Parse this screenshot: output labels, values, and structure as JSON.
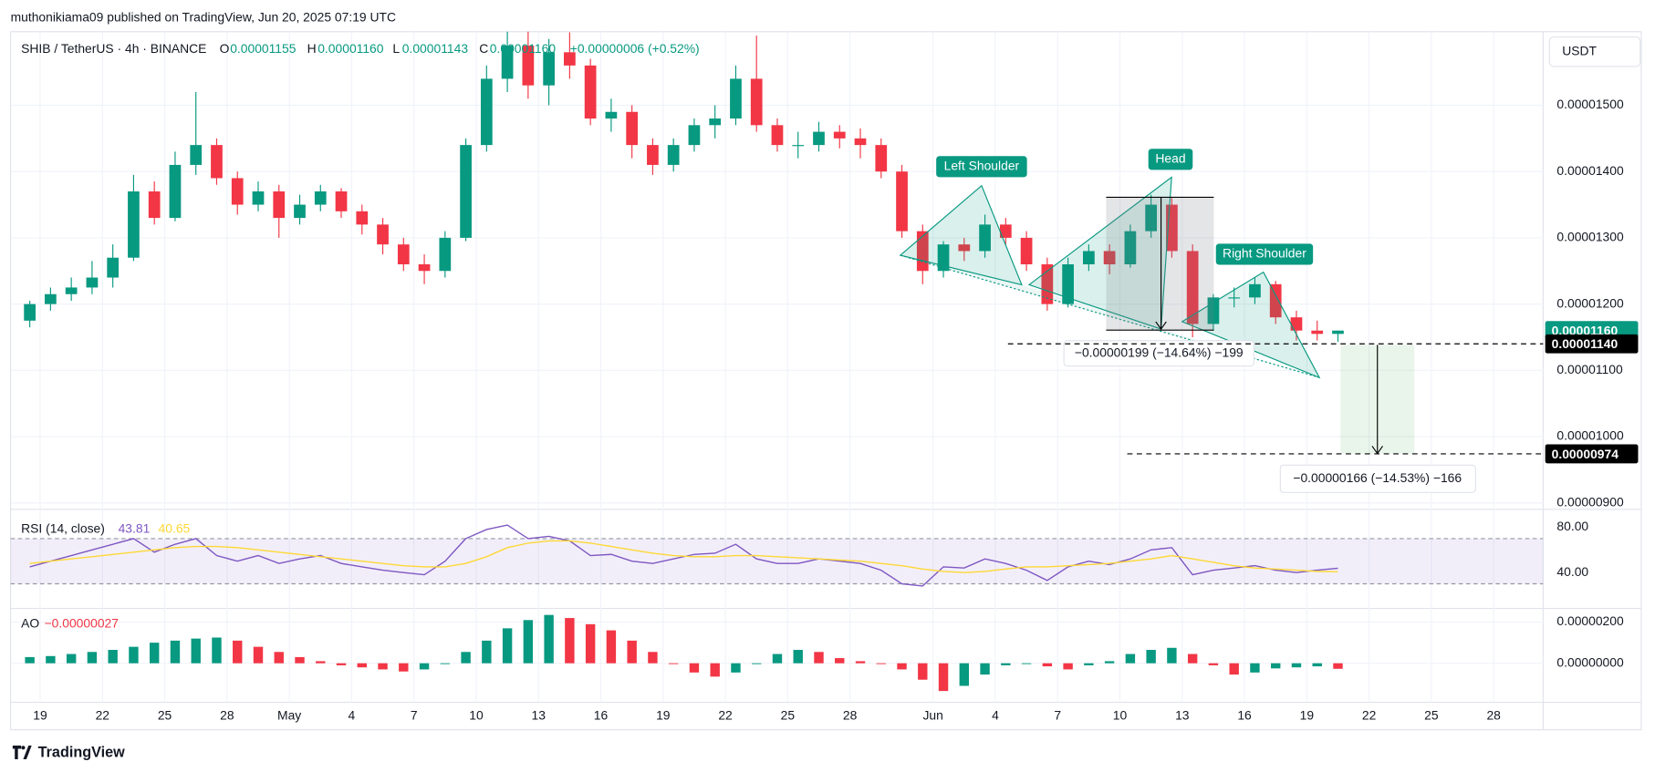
{
  "page": {
    "publisher": "muthonikiama09 published on TradingView, Jun 20, 2025 07:19 UTC",
    "brand": "TradingView"
  },
  "chart_data": {
    "type": "candlestick",
    "title": "SHIB / TetherUS · 4h · BINANCE",
    "ohlc_legend": [
      {
        "key": "O",
        "text": "0.00001155"
      },
      {
        "key": "H",
        "text": "0.00001160"
      },
      {
        "key": "L",
        "text": "0.00001143"
      },
      {
        "key": "C",
        "text": "0.00001160"
      }
    ],
    "change": "+0.00000006 (+0.52%)",
    "currency": "USDT",
    "up_color": "#089981",
    "down_color": "#f23645",
    "x": [
      "2025-04-18",
      "2025-04-19",
      "2025-04-20",
      "2025-04-21",
      "2025-04-22",
      "2025-04-23",
      "2025-04-24",
      "2025-04-25",
      "2025-04-26",
      "2025-04-27",
      "2025-04-28",
      "2025-04-29",
      "2025-04-30",
      "2025-05-01",
      "2025-05-02",
      "2025-05-03",
      "2025-05-04",
      "2025-05-05",
      "2025-05-06",
      "2025-05-07",
      "2025-05-08",
      "2025-05-09",
      "2025-05-10",
      "2025-05-11",
      "2025-05-12",
      "2025-05-13",
      "2025-05-14",
      "2025-05-15",
      "2025-05-16",
      "2025-05-17",
      "2025-05-18",
      "2025-05-19",
      "2025-05-20",
      "2025-05-21",
      "2025-05-22",
      "2025-05-23",
      "2025-05-24",
      "2025-05-25",
      "2025-05-26",
      "2025-05-27",
      "2025-05-28",
      "2025-05-29",
      "2025-05-30",
      "2025-05-31",
      "2025-06-01",
      "2025-06-02",
      "2025-06-03",
      "2025-06-04",
      "2025-06-05",
      "2025-06-06",
      "2025-06-07",
      "2025-06-08",
      "2025-06-09",
      "2025-06-10",
      "2025-06-11",
      "2025-06-12",
      "2025-06-13",
      "2025-06-14",
      "2025-06-15",
      "2025-06-16",
      "2025-06-17",
      "2025-06-18",
      "2025-06-19",
      "2025-06-20"
    ],
    "open": [
      1.175e-05,
      1.2e-05,
      1.215e-05,
      1.225e-05,
      1.24e-05,
      1.27e-05,
      1.37e-05,
      1.33e-05,
      1.41e-05,
      1.44e-05,
      1.39e-05,
      1.35e-05,
      1.37e-05,
      1.33e-05,
      1.35e-05,
      1.37e-05,
      1.34e-05,
      1.32e-05,
      1.29e-05,
      1.26e-05,
      1.25e-05,
      1.3e-05,
      1.44e-05,
      1.54e-05,
      1.59e-05,
      1.53e-05,
      1.58e-05,
      1.56e-05,
      1.48e-05,
      1.49e-05,
      1.44e-05,
      1.41e-05,
      1.44e-05,
      1.47e-05,
      1.48e-05,
      1.54e-05,
      1.47e-05,
      1.44e-05,
      1.44e-05,
      1.46e-05,
      1.45e-05,
      1.44e-05,
      1.4e-05,
      1.31e-05,
      1.25e-05,
      1.29e-05,
      1.28e-05,
      1.32e-05,
      1.3e-05,
      1.26e-05,
      1.2e-05,
      1.26e-05,
      1.28e-05,
      1.26e-05,
      1.31e-05,
      1.35e-05,
      1.28e-05,
      1.17e-05,
      1.21e-05,
      1.21e-05,
      1.23e-05,
      1.18e-05,
      1.16e-05,
      1.155e-05
    ],
    "high": [
      1.205e-05,
      1.225e-05,
      1.24e-05,
      1.265e-05,
      1.29e-05,
      1.395e-05,
      1.385e-05,
      1.43e-05,
      1.52e-05,
      1.45e-05,
      1.4e-05,
      1.385e-05,
      1.38e-05,
      1.365e-05,
      1.38e-05,
      1.375e-05,
      1.35e-05,
      1.33e-05,
      1.3e-05,
      1.275e-05,
      1.31e-05,
      1.45e-05,
      1.56e-05,
      1.62e-05,
      1.615e-05,
      1.6e-05,
      1.61e-05,
      1.57e-05,
      1.51e-05,
      1.5e-05,
      1.45e-05,
      1.45e-05,
      1.48e-05,
      1.5e-05,
      1.56e-05,
      1.605e-05,
      1.48e-05,
      1.46e-05,
      1.475e-05,
      1.47e-05,
      1.465e-05,
      1.45e-05,
      1.41e-05,
      1.32e-05,
      1.295e-05,
      1.3e-05,
      1.335e-05,
      1.33e-05,
      1.31e-05,
      1.27e-05,
      1.27e-05,
      1.29e-05,
      1.29e-05,
      1.32e-05,
      1.365e-05,
      1.36e-05,
      1.29e-05,
      1.215e-05,
      1.225e-05,
      1.24e-05,
      1.235e-05,
      1.19e-05,
      1.175e-05,
      1.16e-05
    ],
    "low": [
      1.165e-05,
      1.19e-05,
      1.205e-05,
      1.215e-05,
      1.225e-05,
      1.265e-05,
      1.32e-05,
      1.325e-05,
      1.395e-05,
      1.38e-05,
      1.335e-05,
      1.34e-05,
      1.3e-05,
      1.32e-05,
      1.34e-05,
      1.33e-05,
      1.305e-05,
      1.275e-05,
      1.25e-05,
      1.23e-05,
      1.24e-05,
      1.295e-05,
      1.43e-05,
      1.52e-05,
      1.51e-05,
      1.5e-05,
      1.54e-05,
      1.47e-05,
      1.46e-05,
      1.42e-05,
      1.395e-05,
      1.4e-05,
      1.43e-05,
      1.45e-05,
      1.47e-05,
      1.46e-05,
      1.43e-05,
      1.42e-05,
      1.43e-05,
      1.435e-05,
      1.42e-05,
      1.39e-05,
      1.3e-05,
      1.23e-05,
      1.24e-05,
      1.265e-05,
      1.27e-05,
      1.29e-05,
      1.25e-05,
      1.19e-05,
      1.195e-05,
      1.25e-05,
      1.245e-05,
      1.255e-05,
      1.3e-05,
      1.27e-05,
      1.15e-05,
      1.16e-05,
      1.195e-05,
      1.2e-05,
      1.17e-05,
      1.145e-05,
      1.145e-05,
      1.143e-05
    ],
    "close": [
      1.2e-05,
      1.215e-05,
      1.225e-05,
      1.24e-05,
      1.27e-05,
      1.37e-05,
      1.33e-05,
      1.41e-05,
      1.44e-05,
      1.39e-05,
      1.35e-05,
      1.37e-05,
      1.33e-05,
      1.35e-05,
      1.37e-05,
      1.34e-05,
      1.32e-05,
      1.29e-05,
      1.26e-05,
      1.25e-05,
      1.3e-05,
      1.44e-05,
      1.54e-05,
      1.59e-05,
      1.53e-05,
      1.58e-05,
      1.56e-05,
      1.48e-05,
      1.49e-05,
      1.44e-05,
      1.41e-05,
      1.44e-05,
      1.47e-05,
      1.48e-05,
      1.54e-05,
      1.47e-05,
      1.44e-05,
      1.44e-05,
      1.46e-05,
      1.45e-05,
      1.44e-05,
      1.4e-05,
      1.31e-05,
      1.25e-05,
      1.29e-05,
      1.28e-05,
      1.32e-05,
      1.3e-05,
      1.26e-05,
      1.2e-05,
      1.26e-05,
      1.28e-05,
      1.26e-05,
      1.31e-05,
      1.35e-05,
      1.28e-05,
      1.17e-05,
      1.21e-05,
      1.21e-05,
      1.23e-05,
      1.18e-05,
      1.16e-05,
      1.155e-05,
      1.16e-05
    ],
    "xlim": [
      "2025-04-17",
      "2025-06-30"
    ],
    "xticks": [
      {
        "value": "2025-04-19",
        "label": "19"
      },
      {
        "value": "2025-04-22",
        "label": "22"
      },
      {
        "value": "2025-04-25",
        "label": "25"
      },
      {
        "value": "2025-04-28",
        "label": "28"
      },
      {
        "value": "2025-05-01",
        "label": "May"
      },
      {
        "value": "2025-05-04",
        "label": "4"
      },
      {
        "value": "2025-05-07",
        "label": "7"
      },
      {
        "value": "2025-05-10",
        "label": "10"
      },
      {
        "value": "2025-05-13",
        "label": "13"
      },
      {
        "value": "2025-05-16",
        "label": "16"
      },
      {
        "value": "2025-05-19",
        "label": "19"
      },
      {
        "value": "2025-05-22",
        "label": "22"
      },
      {
        "value": "2025-05-25",
        "label": "25"
      },
      {
        "value": "2025-05-28",
        "label": "28"
      },
      {
        "value": "2025-06-01",
        "label": "Jun"
      },
      {
        "value": "2025-06-04",
        "label": "4"
      },
      {
        "value": "2025-06-07",
        "label": "7"
      },
      {
        "value": "2025-06-10",
        "label": "10"
      },
      {
        "value": "2025-06-13",
        "label": "13"
      },
      {
        "value": "2025-06-16",
        "label": "16"
      },
      {
        "value": "2025-06-19",
        "label": "19"
      },
      {
        "value": "2025-06-22",
        "label": "22"
      },
      {
        "value": "2025-06-25",
        "label": "25"
      },
      {
        "value": "2025-06-28",
        "label": "28"
      }
    ],
    "ylim": [
      8.95e-06,
      1.611e-05
    ],
    "yticks": [
      {
        "value": 9e-06,
        "label": "0.00000900"
      },
      {
        "value": 1e-05,
        "label": "0.00001000"
      },
      {
        "value": 1.1e-05,
        "label": "0.00001100"
      },
      {
        "value": 1.2e-05,
        "label": "0.00001200"
      },
      {
        "value": 1.3e-05,
        "label": "0.00001300"
      },
      {
        "value": 1.4e-05,
        "label": "0.00001400"
      },
      {
        "value": 1.5e-05,
        "label": "0.00001500"
      }
    ],
    "grid": true,
    "price_tags": [
      {
        "value": 1.16e-05,
        "label": "0.00001160",
        "color": "#089981"
      },
      {
        "value": 1.14e-05,
        "label": "0.00001140",
        "color": "#000000"
      },
      {
        "value": 9.74e-06,
        "label": "0.00000974",
        "color": "#000000"
      }
    ],
    "annotations": [
      "Left Shoulder",
      "Head",
      "Right Shoulder",
      "−0.00000199 (−14.64%) −199",
      "−0.00000166 (−14.53%) −166"
    ],
    "rsi": {
      "type": "line",
      "title": "RSI (14, close)",
      "ylim": [
        10,
        94
      ],
      "yticks": [
        {
          "value": 40,
          "label": "40.00"
        },
        {
          "value": 80,
          "label": "80.00"
        }
      ],
      "band": [
        30,
        70
      ],
      "band_color": "#7e57c2",
      "series": [
        {
          "color": "#7e57c2",
          "values": [
            45,
            50,
            55,
            60,
            65,
            70,
            58,
            65,
            70,
            55,
            50,
            55,
            48,
            52,
            55,
            48,
            45,
            42,
            40,
            38,
            50,
            70,
            78,
            82,
            70,
            72,
            68,
            55,
            56,
            50,
            48,
            52,
            56,
            57,
            65,
            52,
            48,
            48,
            52,
            50,
            48,
            42,
            30,
            28,
            45,
            44,
            52,
            48,
            42,
            33,
            45,
            50,
            47,
            52,
            60,
            62,
            38,
            42,
            44,
            46,
            42,
            40,
            42,
            43.81
          ]
        },
        {
          "color": "#fdd835",
          "values": [
            48,
            50,
            52,
            54,
            56,
            58,
            60,
            62,
            63,
            63,
            62,
            60,
            58,
            56,
            54,
            52,
            50,
            48,
            46,
            45,
            45,
            48,
            54,
            62,
            66,
            68,
            68,
            66,
            63,
            60,
            57,
            55,
            54,
            54,
            55,
            55,
            54,
            53,
            52,
            51,
            50,
            48,
            46,
            43,
            41,
            40,
            41,
            43,
            45,
            45,
            46,
            47,
            48,
            50,
            52,
            55,
            52,
            49,
            46,
            44,
            43,
            42,
            41,
            40.65
          ]
        }
      ]
    },
    "ao": {
      "type": "bar",
      "title": "AO",
      "ylim": [
        -1.85e-06,
        2.51e-06
      ],
      "yticks": [
        {
          "value": 0,
          "label": "0.00000000"
        },
        {
          "value": 2e-06,
          "label": "0.00000200"
        }
      ],
      "values": [
        3e-07,
        3.5e-07,
        4.5e-07,
        5.5e-07,
        6.5e-07,
        8e-07,
        1e-06,
        1.1e-06,
        1.2e-06,
        1.25e-06,
        1.1e-06,
        8e-07,
        5.5e-07,
        3e-07,
        1e-07,
        -1e-07,
        -2e-07,
        -3e-07,
        -4e-07,
        -3e-07,
        0,
        5.5e-07,
        1.1e-06,
        1.7e-06,
        2.1e-06,
        2.35e-06,
        2.2e-06,
        1.9e-06,
        1.6e-06,
        1.1e-06,
        5.5e-07,
        0,
        -4.5e-07,
        -6.5e-07,
        -4.5e-07,
        0,
        4.5e-07,
        6.5e-07,
        5.5e-07,
        2.5e-07,
        1e-07,
        0,
        -3e-07,
        -8e-07,
        -1.35e-06,
        -1.1e-06,
        -5.5e-07,
        -1e-07,
        0,
        -1.5e-07,
        -3e-07,
        -1e-07,
        1e-07,
        4.5e-07,
        6.5e-07,
        7.5e-07,
        4.5e-07,
        -1e-07,
        -5.5e-07,
        -4.5e-07,
        -2.5e-07,
        -2e-07,
        -1.5e-07,
        -2.7e-07
      ],
      "value_label": "−0.00000027"
    }
  }
}
